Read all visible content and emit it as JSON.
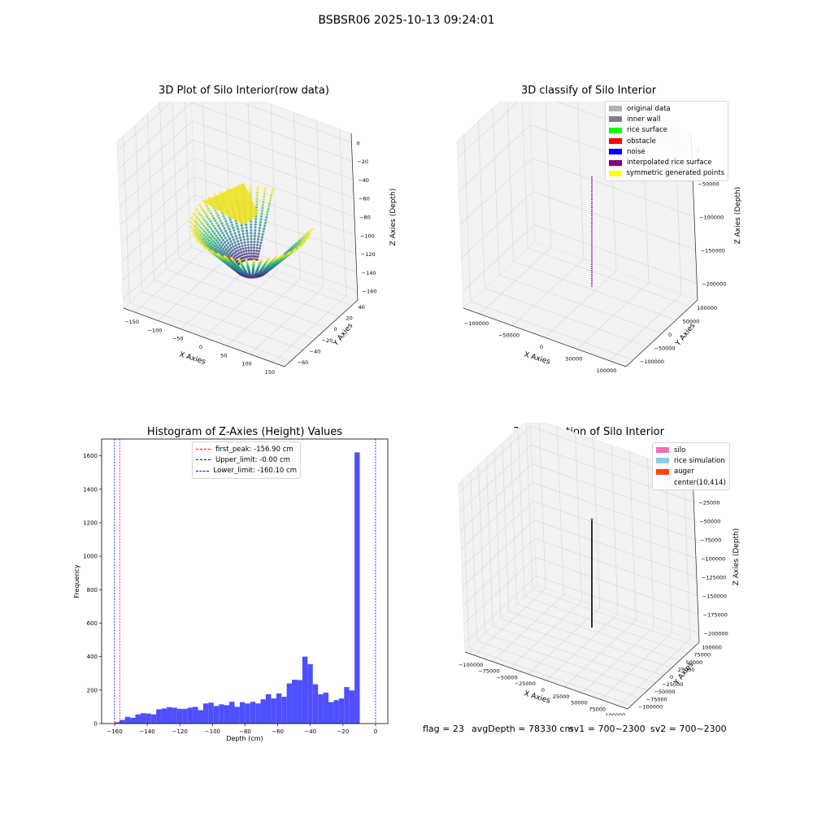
{
  "figure": {
    "title": "BSBSR06 2025-10-13 09:24:01"
  },
  "panels": {
    "p1": {
      "title": "3D Plot of Silo Interior(row data)",
      "xlabel": "X Axies",
      "ylabel": "Y Axies",
      "zlabel": "Z Axies (Depth)",
      "xticks": [
        "−150",
        "−100",
        "−50",
        "0",
        "50",
        "100",
        "150"
      ],
      "yticks": [
        "40",
        "20",
        "0",
        "−20",
        "−40",
        "−60"
      ],
      "zticks": [
        "0",
        "−20",
        "−40",
        "−60",
        "−80",
        "−100",
        "−120",
        "−140",
        "−160"
      ]
    },
    "p2": {
      "title": "3D classify of Silo Interior",
      "xlabel": "X Axies",
      "ylabel": "Y Axies",
      "zlabel": "Z Axies (Depth)",
      "xticks": [
        "−100000",
        "−50000",
        "0",
        "50000",
        "100000"
      ],
      "yticks": [
        "100000",
        "50000",
        "0",
        "−50000",
        "−100000"
      ],
      "zticks": [
        "0",
        "−50000",
        "−100000",
        "−150000",
        "−200000"
      ],
      "legend": [
        {
          "label": "original data",
          "color": "#b4b4b4"
        },
        {
          "label": "inner wall",
          "color": "#808080"
        },
        {
          "label": "rice surface",
          "color": "#00ff00"
        },
        {
          "label": "obstacle",
          "color": "#ff0000"
        },
        {
          "label": "noise",
          "color": "#0000ff"
        },
        {
          "label": "interpolated rice surface",
          "color": "#800080"
        },
        {
          "label": "symmetric generated points",
          "color": "#ffff00"
        }
      ]
    },
    "p4": {
      "title": "3D simulation of Silo Interior",
      "xlabel": "X Axies",
      "ylabel": "Y Axies",
      "zlabel": "Z Axies (Depth)",
      "xticks": [
        "−100000",
        "−75000",
        "−50000",
        "−25000",
        "0",
        "25000",
        "50000",
        "75000",
        "100000"
      ],
      "yticks": [
        "100000",
        "75000",
        "50000",
        "25000",
        "0",
        "−25000",
        "−50000",
        "−75000",
        "−100000"
      ],
      "zticks": [
        "0",
        "−25000",
        "−50000",
        "−75000",
        "−100000",
        "−125000",
        "−150000",
        "−175000",
        "−200000"
      ],
      "legend": [
        {
          "label": "silo",
          "color": "#ff69b4"
        },
        {
          "label": "rice simulation",
          "color": "#87ceeb"
        },
        {
          "label": "auger",
          "color": "#ff4500"
        },
        {
          "label": "center(10,414)",
          "color": ""
        }
      ]
    }
  },
  "status": {
    "flag": "flag = 23",
    "avg_depth": "avgDepth = 78330 cm",
    "sv1": "sv1 = 700~2300",
    "sv2": "sv2 = 700~2300"
  },
  "colors": {
    "bars": "#4f4fff",
    "first_peak": "#ff0000",
    "limits": "#0000ff"
  },
  "chart_data": {
    "type": "bar",
    "title": "Histogram of Z-Axies (Height) Values",
    "xlabel": "Depth (cm)",
    "ylabel": "Frequency",
    "xlim": [
      -168,
      7.5
    ],
    "ylim": [
      0,
      1700
    ],
    "xticks": [
      -160,
      -140,
      -120,
      -100,
      -80,
      -60,
      -40,
      -20,
      0
    ],
    "yticks": [
      0,
      200,
      400,
      600,
      800,
      1000,
      1200,
      1400,
      1600
    ],
    "bins": {
      "start": -160.1,
      "width": 3.2,
      "counts": [
        8,
        22,
        40,
        35,
        55,
        62,
        60,
        55,
        85,
        90,
        98,
        95,
        88,
        88,
        95,
        100,
        80,
        120,
        125,
        105,
        115,
        110,
        130,
        100,
        128,
        120,
        130,
        120,
        145,
        175,
        150,
        180,
        160,
        240,
        262,
        260,
        400,
        355,
        235,
        175,
        185,
        128,
        140,
        150,
        218,
        198,
        1620
      ]
    },
    "vlines": [
      {
        "label": "first_peak: -156.90 cm",
        "x": -156.9,
        "color": "#ff0000"
      },
      {
        "label": "Upper_limit: -0.00 cm",
        "x": 0,
        "color": "#0000ff"
      },
      {
        "label": "Lower_limit: -160.10 cm",
        "x": -160.1,
        "color": "#0000ff"
      }
    ]
  }
}
